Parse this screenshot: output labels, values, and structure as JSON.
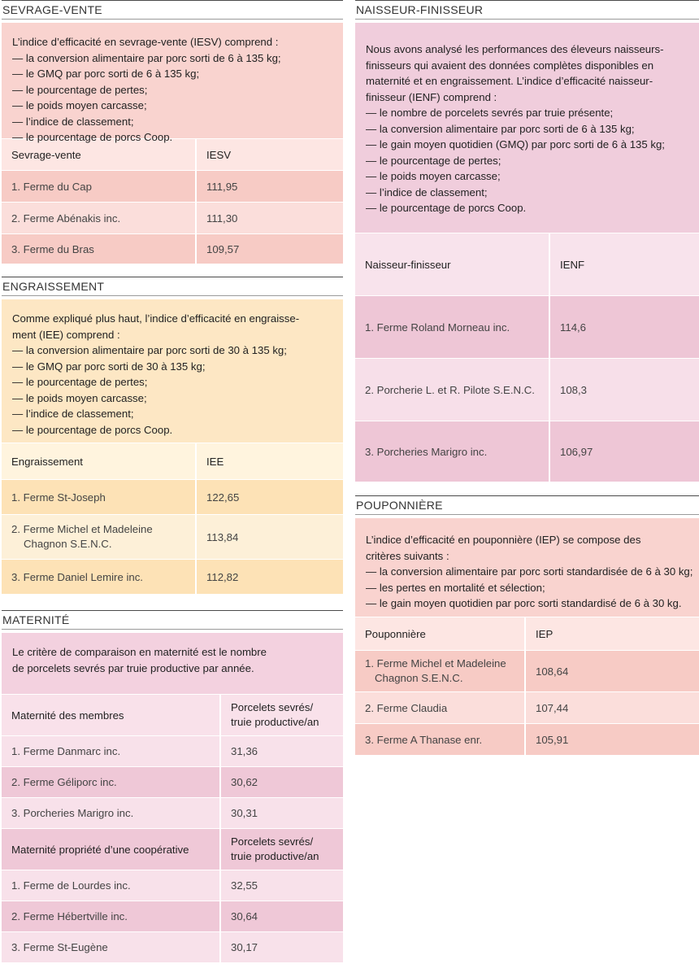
{
  "sevrage": {
    "title": "SEVRAGE-VENTE",
    "intro": [
      "L’indice d’efficacité en sevrage-vente (IESV) comprend :",
      "— la conversion alimentaire par porc sorti de 6 à 135 kg;",
      "— le GMQ par porc sorti de 6 à 135 kg;",
      "— le pourcentage de pertes;",
      "— le poids moyen carcasse;",
      "— l’indice de classement;",
      "— le pourcentage de porcs Coop."
    ],
    "headers": [
      "Sevrage-vente",
      "IESV"
    ],
    "rows": [
      [
        "1. Ferme du Cap",
        "111,95"
      ],
      [
        "2. Ferme Abénakis inc.",
        "111,30"
      ],
      [
        "3. Ferme du Bras",
        "109,57"
      ]
    ]
  },
  "engraissement": {
    "title": "ENGRAISSEMENT",
    "intro": [
      "Comme expliqué plus haut, l’indice d’efficacité en engraisse-",
      "ment (IEE) comprend :",
      "— la conversion alimentaire par porc sorti de 30 à 135 kg;",
      "— le GMQ par porc sorti de 30 à 135 kg;",
      "— le pourcentage de pertes;",
      "— le poids moyen carcasse;",
      "— l’indice de classement;",
      "— le pourcentage de porcs Coop."
    ],
    "headers": [
      "Engraissement",
      "IEE"
    ],
    "rows": [
      [
        "1. Ferme St-Joseph",
        "122,65"
      ],
      [
        "2. Ferme Michel et Madeleine",
        "113,84"
      ],
      [
        "3. Ferme Daniel Lemire inc.",
        "112,82"
      ]
    ],
    "row2_line2": "Chagnon S.E.N.C."
  },
  "maternite": {
    "title": "MATERNITÉ",
    "intro": [
      "Le critère de comparaison en maternité est le nombre",
      "de porcelets sevrés par truie productive par année."
    ],
    "membres_headers": [
      "Maternité des membres",
      "Porcelets sevrés/",
      "truie productive/an"
    ],
    "membres_rows": [
      [
        "1. Ferme Danmarc inc.",
        "31,36"
      ],
      [
        "2. Ferme Géliporc inc.",
        "30,62"
      ],
      [
        "3. Porcheries Marigro inc.",
        "30,31"
      ]
    ],
    "coop_headers": [
      "Maternité propriété d’une coopérative",
      "Porcelets sevrés/",
      "truie productive/an"
    ],
    "coop_rows": [
      [
        "1. Ferme de Lourdes inc.",
        "32,55"
      ],
      [
        "2. Ferme Hébertville inc.",
        "30,64"
      ],
      [
        "3. Ferme St-Eugène",
        "30,17"
      ]
    ]
  },
  "naisseur": {
    "title": "NAISSEUR-FINISSEUR",
    "intro": [
      "Nous avons analysé les performances des éleveurs naisseurs-",
      "finisseurs qui avaient des données complètes disponibles en",
      "maternité et en engraissement. L’indice d’efficacité naisseur-",
      "finisseur (IENF) comprend :",
      "— le nombre de porcelets sevrés par truie présente;",
      "— la conversion alimentaire par porc sorti de 6 à 135 kg;",
      "— le gain moyen quotidien (GMQ) par porc sorti de 6 à 135 kg;",
      "— le pourcentage de pertes;",
      "— le poids moyen carcasse;",
      "— l’indice de classement;",
      "— le pourcentage de porcs Coop."
    ],
    "headers": [
      "Naisseur-finisseur",
      "IENF"
    ],
    "rows": [
      [
        "1. Ferme Roland Morneau inc.",
        "114,6"
      ],
      [
        "2. Porcherie L. et R. Pilote S.E.N.C.",
        "108,3"
      ],
      [
        "3. Porcheries Marigro inc.",
        "106,97"
      ]
    ]
  },
  "pouponniere": {
    "title": "POUPONNIÈRE",
    "intro": [
      "L’indice d’efficacité en pouponnière (IEP) se compose des",
      "critères suivants :",
      "— la conversion alimentaire par porc sorti standardisée de 6 à 30 kg;",
      "— les pertes en mortalité et sélection;",
      "— le gain moyen quotidien par porc sorti standardisé de 6 à 30 kg."
    ],
    "headers": [
      "Pouponnière",
      "IEP"
    ],
    "rows": [
      [
        "1. Ferme Michel et Madeleine",
        "108,64"
      ],
      [
        "2. Ferme Claudia",
        "107,44"
      ],
      [
        "3. Ferme A Thanase enr.",
        "105,91"
      ]
    ],
    "row1_line2": "Chagnon S.E.N.C."
  }
}
